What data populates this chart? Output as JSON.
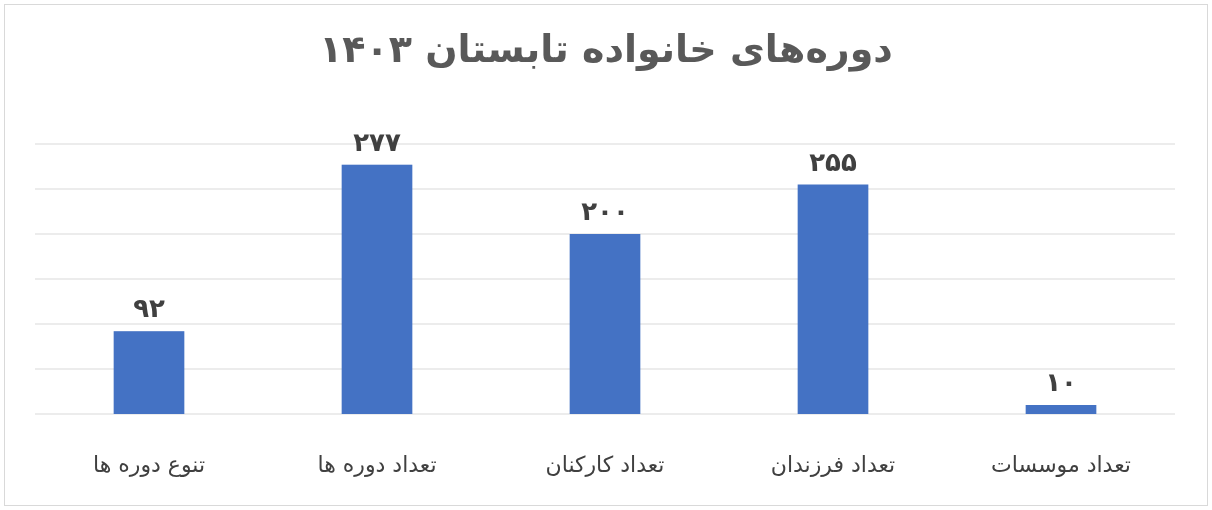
{
  "chart_data": {
    "type": "bar",
    "title": "دوره‌های خانواده تابستان ۱۴۰۳",
    "categories": [
      "تنوع دوره ها",
      "تعداد دوره ها",
      "تعداد کارکنان",
      "تعداد فرزندان",
      "تعداد موسسات"
    ],
    "values": [
      92,
      277,
      200,
      255,
      10
    ],
    "value_labels": [
      "۹۲",
      "۲۷۷",
      "۲۰۰",
      "۲۵۵",
      "۱۰"
    ],
    "color": "#4472c4",
    "ylim": [
      0,
      300
    ],
    "yticks": [
      {
        "value": 0,
        "label": null
      },
      {
        "value": 50,
        "label": null
      },
      {
        "value": 100,
        "label": null
      },
      {
        "value": 150,
        "label": null
      },
      {
        "value": 200,
        "label": null
      },
      {
        "value": 250,
        "label": null
      },
      {
        "value": 300,
        "label": null
      }
    ],
    "grid": "y",
    "tick_labels": "x"
  }
}
